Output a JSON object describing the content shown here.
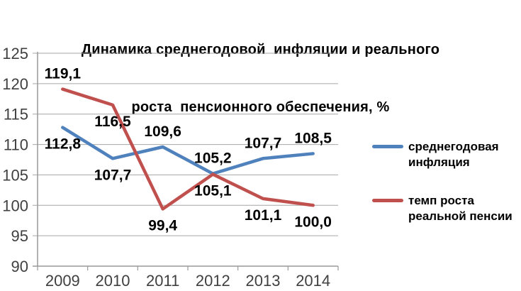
{
  "title": {
    "lines": [
      "Динамика среднегодовой  инфляции и реального",
      "роста  пенсионного обеспечения, %"
    ]
  },
  "chart_data": {
    "type": "line",
    "title": "Динамика среднегодовой инфляции и реального роста пенсионного обеспечения, %",
    "categories": [
      "2009",
      "2010",
      "2011",
      "2012",
      "2013",
      "2014"
    ],
    "series": [
      {
        "name": "среднегодовая инфляция",
        "color": "#4F81BD",
        "values": [
          112.8,
          107.7,
          109.6,
          105.2,
          107.7,
          108.5
        ],
        "labels": [
          "112,8",
          "107,7",
          "109,6",
          "105,2",
          "107,7",
          "108,5"
        ],
        "label_side": [
          "below",
          "below",
          "above",
          "above",
          "above",
          "above"
        ]
      },
      {
        "name": "темп роста реальной пенсии",
        "color": "#C0504D",
        "values": [
          119.1,
          116.5,
          99.4,
          105.1,
          101.1,
          100.0
        ],
        "labels": [
          "119,1",
          "116,5",
          "99,4",
          "105,1",
          "101,1",
          "100,0"
        ],
        "label_side": [
          "above",
          "below",
          "below",
          "below",
          "below",
          "below"
        ]
      }
    ],
    "xlabel": "",
    "ylabel": "",
    "ylim": [
      90,
      125
    ],
    "yticks": [
      90,
      95,
      100,
      105,
      110,
      115,
      120,
      125
    ],
    "ytick_labels": [
      "90",
      "95",
      "100",
      "105",
      "110",
      "115",
      "120",
      "125"
    ],
    "grid": true,
    "legend_position": "right",
    "decimal_separator": ","
  },
  "colors": {
    "grid": "#A6A6A6",
    "axis": "#999999",
    "tick_label": "#404040",
    "data_label": "#000000"
  }
}
